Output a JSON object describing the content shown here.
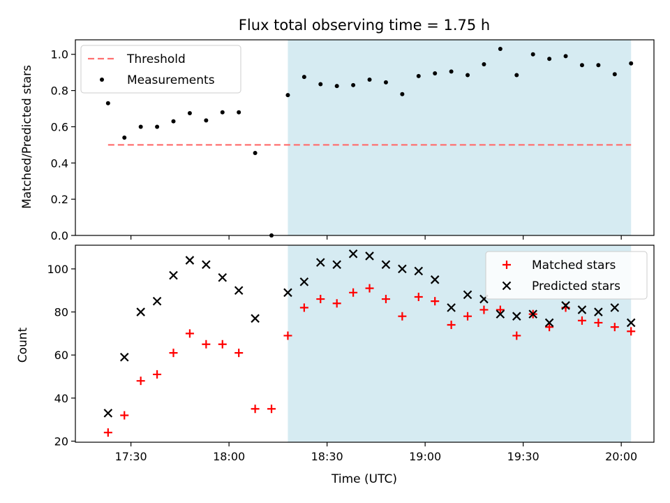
{
  "chart_data": {
    "title": "Flux total observing time = 1.75 h",
    "xlabel": "Time (UTC)",
    "x_ticks": [
      "17:30",
      "18:00",
      "18:30",
      "19:00",
      "19:30",
      "20:00"
    ],
    "x_tick_times": [
      "17:30",
      "18:00",
      "18:30",
      "19:00",
      "19:30",
      "20:00"
    ],
    "xlim": [
      "17:13",
      "20:10"
    ],
    "highlight_span": [
      "18:18",
      "20:03"
    ],
    "highlight_color": "#add8e6",
    "panels": [
      {
        "type": "scatter",
        "ylabel": "Matched/Predicted stars",
        "ylim": [
          0,
          1.08
        ],
        "y_ticks": [
          "0.0",
          "0.2",
          "0.4",
          "0.6",
          "0.8",
          "1.0"
        ],
        "y_tick_values": [
          0,
          0.2,
          0.4,
          0.6,
          0.8,
          1.0
        ],
        "legend_position": "upper-left",
        "series": [
          {
            "name": "Threshold",
            "kind": "hline",
            "color": "#ff7070",
            "value": 0.5,
            "x_range": [
              "17:23",
              "20:03"
            ]
          },
          {
            "name": "Measurements",
            "kind": "points",
            "color": "#000000",
            "x": [
              "17:23",
              "17:28",
              "17:33",
              "17:38",
              "17:43",
              "17:48",
              "17:53",
              "17:58",
              "18:03",
              "18:08",
              "18:13",
              "18:18",
              "18:23",
              "18:28",
              "18:33",
              "18:38",
              "18:43",
              "18:48",
              "18:53",
              "18:58",
              "19:03",
              "19:08",
              "19:13",
              "19:18",
              "19:23",
              "19:28",
              "19:33",
              "19:38",
              "19:43",
              "19:48",
              "19:53",
              "19:58",
              "20:03"
            ],
            "y": [
              0.73,
              0.54,
              0.6,
              0.6,
              0.63,
              0.675,
              0.635,
              0.68,
              0.68,
              0.455,
              0.0,
              0.775,
              0.875,
              0.835,
              0.825,
              0.83,
              0.86,
              0.845,
              0.78,
              0.88,
              0.895,
              0.905,
              0.885,
              0.945,
              1.03,
              0.885,
              1.0,
              0.975,
              0.99,
              0.94,
              0.94,
              0.89,
              0.95
            ]
          }
        ]
      },
      {
        "type": "scatter",
        "ylabel": "Count",
        "ylim": [
          19.5,
          111
        ],
        "y_ticks": [
          "20",
          "40",
          "60",
          "80",
          "100"
        ],
        "y_tick_values": [
          20,
          40,
          60,
          80,
          100
        ],
        "legend_position": "upper-right",
        "series": [
          {
            "name": "Matched stars",
            "kind": "plus",
            "color": "#ff0000",
            "x": [
              "17:23",
              "17:28",
              "17:33",
              "17:38",
              "17:43",
              "17:48",
              "17:53",
              "17:58",
              "18:03",
              "18:08",
              "18:13",
              "18:18",
              "18:23",
              "18:28",
              "18:33",
              "18:38",
              "18:43",
              "18:48",
              "18:53",
              "18:58",
              "19:03",
              "19:08",
              "19:13",
              "19:18",
              "19:23",
              "19:28",
              "19:33",
              "19:38",
              "19:43",
              "19:48",
              "19:53",
              "19:58",
              "20:03"
            ],
            "y": [
              24,
              32,
              48,
              51,
              61,
              70,
              65,
              65,
              61,
              35,
              35,
              69,
              82,
              86,
              84,
              89,
              91,
              86,
              78,
              87,
              85,
              74,
              78,
              81,
              81,
              69,
              79,
              73,
              82,
              76,
              75,
              73,
              71
            ]
          },
          {
            "name": "Predicted stars",
            "kind": "cross",
            "color": "#000000",
            "x": [
              "17:23",
              "17:28",
              "17:33",
              "17:38",
              "17:43",
              "17:48",
              "17:53",
              "17:58",
              "18:03",
              "18:08",
              "18:18",
              "18:23",
              "18:28",
              "18:33",
              "18:38",
              "18:43",
              "18:48",
              "18:53",
              "18:58",
              "19:03",
              "19:08",
              "19:13",
              "19:18",
              "19:23",
              "19:28",
              "19:33",
              "19:38",
              "19:43",
              "19:48",
              "19:53",
              "19:58",
              "20:03"
            ],
            "y": [
              33,
              59,
              80,
              85,
              97,
              104,
              102,
              96,
              90,
              77,
              89,
              94,
              103,
              102,
              107,
              106,
              102,
              100,
              99,
              95,
              82,
              88,
              86,
              79,
              78,
              79,
              75,
              83,
              81,
              80,
              82,
              75
            ]
          }
        ]
      }
    ]
  }
}
